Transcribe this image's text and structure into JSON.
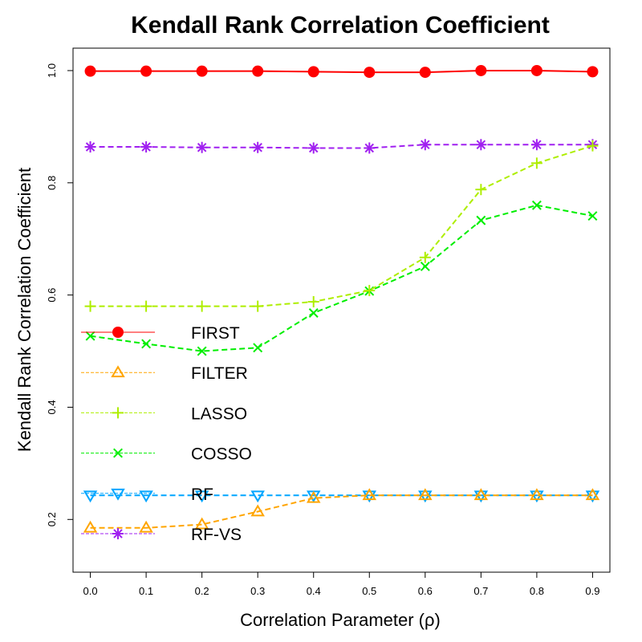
{
  "chart_data": {
    "type": "line",
    "title": "Kendall Rank Correlation Coefficient",
    "xlabel": "Correlation Parameter (ρ)",
    "ylabel": "Kendall Rank Correlation Coefficient",
    "x": [
      0.0,
      0.1,
      0.2,
      0.3,
      0.4,
      0.5,
      0.6,
      0.7,
      0.8,
      0.9
    ],
    "x_tick_labels": [
      "0.0",
      "0.1",
      "0.2",
      "0.3",
      "0.4",
      "0.5",
      "0.6",
      "0.7",
      "0.8",
      "0.9"
    ],
    "y_ticks": [
      0.2,
      0.4,
      0.6,
      0.8,
      1.0
    ],
    "y_tick_labels": [
      "0.2",
      "0.4",
      "0.6",
      "0.8",
      "1.0"
    ],
    "xlim": [
      -0.031,
      0.931
    ],
    "ylim": [
      0.106,
      1.04
    ],
    "grid": false,
    "legend_position": "left",
    "series": [
      {
        "name": "FIRST",
        "color": "#ff0000",
        "marker": "filled-circle",
        "line": "solid",
        "values": [
          0.999,
          0.999,
          0.999,
          0.999,
          0.998,
          0.997,
          0.997,
          1.0,
          1.0,
          0.998
        ]
      },
      {
        "name": "FILTER",
        "color": "#ffa500",
        "marker": "triangle-up",
        "line": "dashed",
        "values": [
          0.185,
          0.185,
          0.191,
          0.214,
          0.238,
          0.243,
          0.243,
          0.243,
          0.243,
          0.243
        ]
      },
      {
        "name": "LASSO",
        "color": "#aeee00",
        "marker": "plus",
        "line": "dashed",
        "values": [
          0.58,
          0.58,
          0.58,
          0.58,
          0.588,
          0.608,
          0.667,
          0.788,
          0.835,
          0.866
        ]
      },
      {
        "name": "COSSO",
        "color": "#00ee00",
        "marker": "cross",
        "line": "dashed",
        "values": [
          0.527,
          0.513,
          0.5,
          0.506,
          0.568,
          0.607,
          0.651,
          0.733,
          0.76,
          0.741
        ]
      },
      {
        "name": "RF",
        "color": "#00a5ff",
        "marker": "triangle-down",
        "line": "dashed",
        "values": [
          0.243,
          0.243,
          0.243,
          0.243,
          0.243,
          0.243,
          0.243,
          0.243,
          0.243,
          0.243
        ]
      },
      {
        "name": "RF-VS",
        "color": "#a020f0",
        "marker": "asterisk",
        "line": "dashed",
        "values": [
          0.864,
          0.864,
          0.863,
          0.863,
          0.862,
          0.862,
          0.868,
          0.868,
          0.868,
          0.868
        ]
      }
    ]
  }
}
